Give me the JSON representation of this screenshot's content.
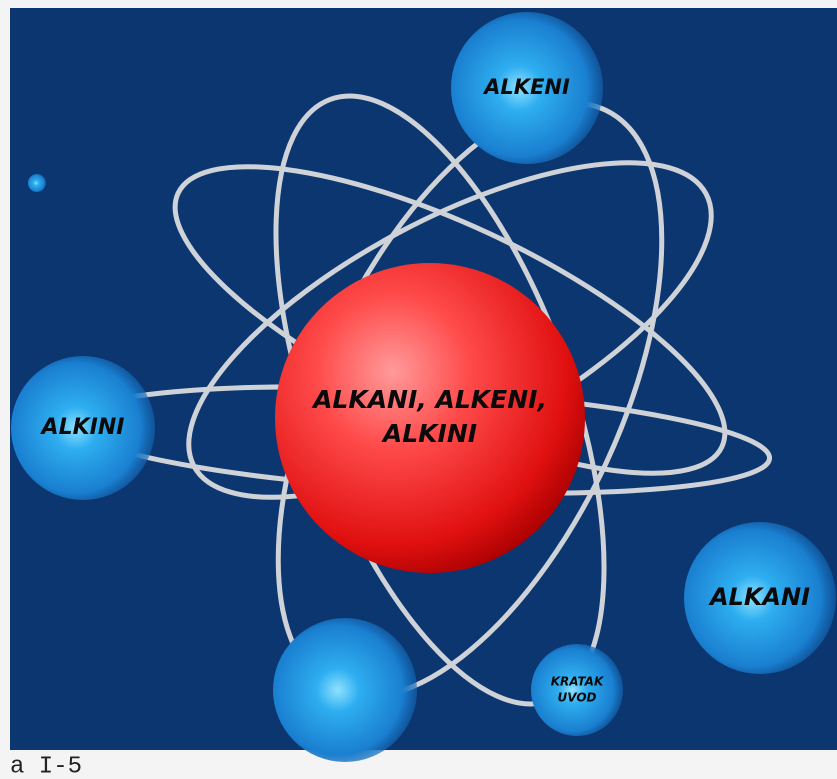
{
  "center": {
    "lines": [
      "ALKANI, ALKENI,",
      "ALKINI"
    ]
  },
  "nodes": [
    {
      "lines": [
        "ALKENI"
      ]
    },
    {
      "lines": [
        "ALKINI"
      ]
    },
    {
      "lines": [
        "ALKANI"
      ]
    },
    {
      "lines": [
        "KRATAK",
        "UVOD"
      ]
    }
  ],
  "footer": "a I-5"
}
